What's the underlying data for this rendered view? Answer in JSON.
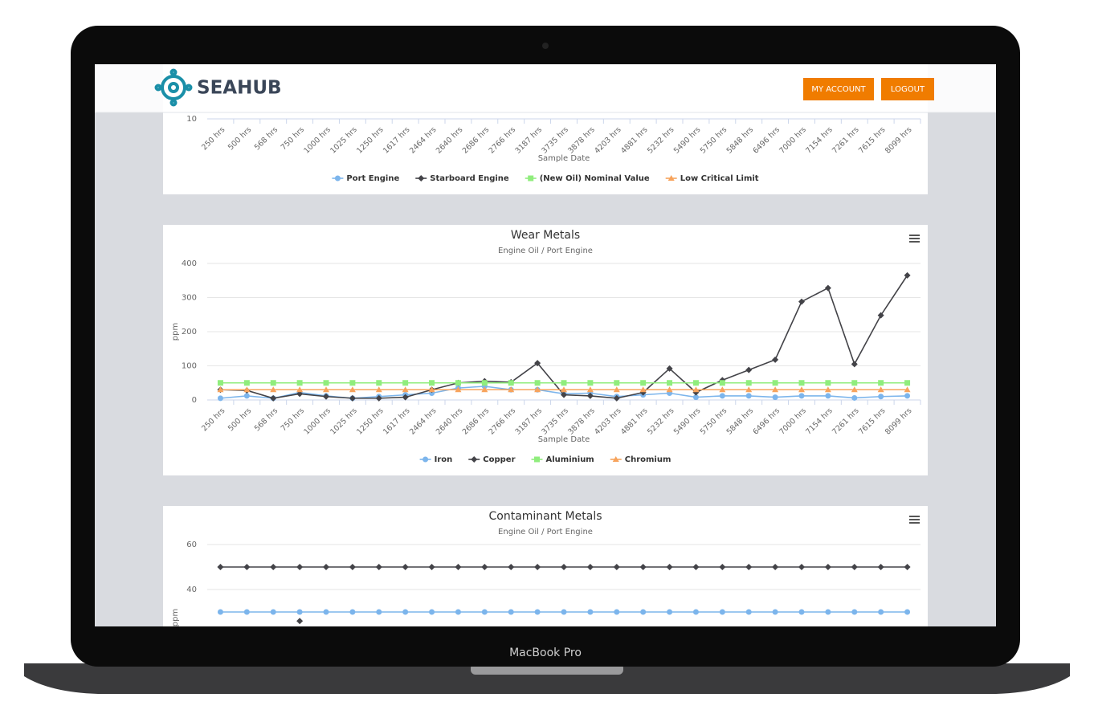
{
  "device_label": "MacBook Pro",
  "header": {
    "logo": "SEAHUB",
    "buttons": [
      "MY ACCOUNT",
      "LOGOUT"
    ]
  },
  "charts": [
    {
      "type": "line",
      "yticks": [
        10
      ],
      "x_label": "Sample Date",
      "categories": [
        "250 hrs",
        "500 hrs",
        "568 hrs",
        "750 hrs",
        "1000 hrs",
        "1025 hrs",
        "1250 hrs",
        "1617 hrs",
        "2464 hrs",
        "2640 hrs",
        "2686 hrs",
        "2766 hrs",
        "3187 hrs",
        "3735 hrs",
        "3878 hrs",
        "4203 hrs",
        "4881 hrs",
        "5232 hrs",
        "5490 hrs",
        "5750 hrs",
        "5848 hrs",
        "6496 hrs",
        "7000 hrs",
        "7154 hrs",
        "7261 hrs",
        "7615 hrs",
        "8099 hrs"
      ],
      "series": [
        {
          "name": "Port Engine",
          "color": "#7cb5ec",
          "marker": "circle"
        },
        {
          "name": "Starboard Engine",
          "color": "#434348",
          "marker": "diamond"
        },
        {
          "name": "(New Oil) Nominal Value",
          "color": "#90ed7d",
          "marker": "square"
        },
        {
          "name": "Low Critical Limit",
          "color": "#f7a35c",
          "marker": "triangle"
        }
      ]
    },
    {
      "type": "line",
      "title": "Wear Metals",
      "subtitle": "Engine Oil / Port Engine",
      "y_label": "ppm",
      "x_label": "Sample Date",
      "ylim": [
        0,
        400
      ],
      "yticks": [
        0,
        100,
        200,
        300,
        400
      ],
      "grid": true,
      "categories": [
        "250 hrs",
        "500 hrs",
        "568 hrs",
        "750 hrs",
        "1000 hrs",
        "1025 hrs",
        "1250 hrs",
        "1617 hrs",
        "2464 hrs",
        "2640 hrs",
        "2686 hrs",
        "2766 hrs",
        "3187 hrs",
        "3735 hrs",
        "3878 hrs",
        "4203 hrs",
        "4881 hrs",
        "5232 hrs",
        "5490 hrs",
        "5750 hrs",
        "5848 hrs",
        "6496 hrs",
        "7000 hrs",
        "7154 hrs",
        "7261 hrs",
        "7615 hrs",
        "8099 hrs"
      ],
      "series": [
        {
          "name": "Iron",
          "color": "#7cb5ec",
          "marker": "circle",
          "values": [
            5,
            12,
            5,
            22,
            12,
            5,
            10,
            15,
            20,
            35,
            40,
            30,
            30,
            18,
            20,
            10,
            15,
            20,
            8,
            12,
            12,
            8,
            12,
            12,
            6,
            10,
            12
          ]
        },
        {
          "name": "Copper",
          "color": "#434348",
          "marker": "diamond",
          "values": [
            30,
            28,
            5,
            18,
            10,
            5,
            5,
            8,
            30,
            50,
            55,
            52,
            108,
            15,
            12,
            5,
            22,
            92,
            22,
            58,
            88,
            118,
            288,
            328,
            105,
            248,
            365
          ]
        },
        {
          "name": "Aluminium",
          "color": "#90ed7d",
          "marker": "square",
          "values": [
            50,
            50,
            50,
            50,
            50,
            50,
            50,
            50,
            50,
            50,
            50,
            50,
            50,
            50,
            50,
            50,
            50,
            50,
            50,
            50,
            50,
            50,
            50,
            50,
            50,
            50,
            50
          ]
        },
        {
          "name": "Chromium",
          "color": "#f7a35c",
          "marker": "triangle",
          "values": [
            30,
            30,
            30,
            30,
            30,
            30,
            30,
            30,
            30,
            30,
            30,
            30,
            30,
            30,
            30,
            30,
            30,
            30,
            30,
            30,
            30,
            30,
            30,
            30,
            30,
            30,
            30
          ]
        }
      ]
    },
    {
      "type": "line",
      "title": "Contaminant Metals",
      "subtitle": "Engine Oil / Port Engine",
      "y_label": "ppm",
      "ylim": [
        0,
        60
      ],
      "yticks": [
        40,
        60
      ],
      "grid": true,
      "series": [
        {
          "color": "#434348",
          "marker": "diamond",
          "values": [
            50,
            50,
            50,
            50,
            50,
            50,
            50,
            50,
            50,
            50,
            50,
            50,
            50,
            50,
            50,
            50,
            50,
            50,
            50,
            50,
            50,
            50,
            50,
            50,
            50,
            50,
            50
          ]
        },
        {
          "color": "#7cb5ec",
          "marker": "circle",
          "values": [
            30,
            30,
            30,
            30,
            30,
            30,
            30,
            30,
            30,
            30,
            30,
            30,
            30,
            30,
            30,
            30,
            30,
            30,
            30,
            30,
            30,
            30,
            30,
            30,
            30,
            30,
            30
          ]
        },
        {
          "color": "#434348",
          "marker": "diamond",
          "values": [
            null,
            null,
            null,
            26,
            null,
            null,
            null,
            null,
            null,
            null,
            null,
            null,
            null,
            null,
            null,
            null,
            null,
            null,
            null,
            null,
            null,
            null,
            null,
            null,
            null,
            null,
            null
          ]
        }
      ]
    }
  ]
}
